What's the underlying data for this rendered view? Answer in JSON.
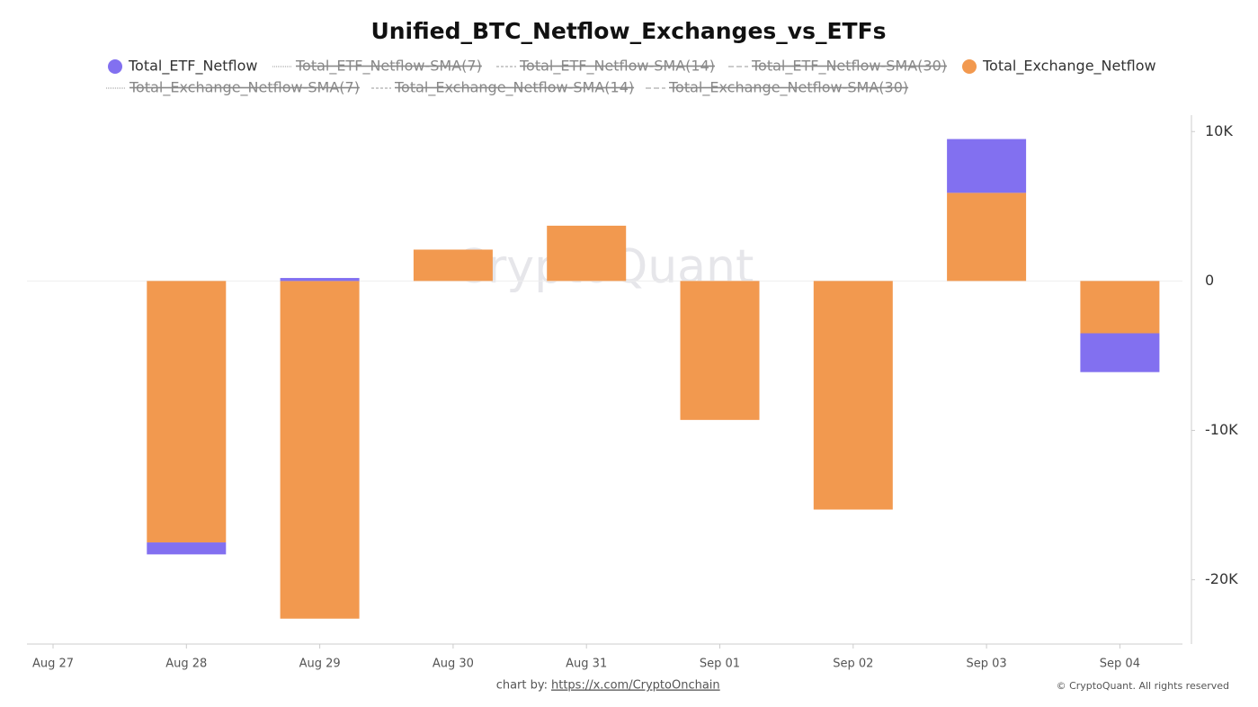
{
  "chart_data": {
    "type": "stacked_bar",
    "title": "Unified_BTC_Netflow_Exchanges_vs_ETFs",
    "categories": [
      "Aug 27",
      "Aug 28",
      "Aug 29",
      "Aug 30",
      "Aug 31",
      "Sep 01",
      "Sep 02",
      "Sep 03",
      "Sep 04"
    ],
    "series": [
      {
        "name": "Total_Exchange_Netflow",
        "color": "#f2994f",
        "values": [
          null,
          -17500,
          -22600,
          2100,
          3700,
          -9300,
          -15300,
          5900,
          -3500
        ]
      },
      {
        "name": "Total_ETF_Netflow",
        "color": "#8270f0",
        "values": [
          null,
          -800,
          200,
          null,
          null,
          null,
          null,
          3600,
          -2600
        ]
      }
    ],
    "inactive_series": [
      "Total_ETF_Netflow-SMA(7)",
      "Total_ETF_Netflow-SMA(14)",
      "Total_ETF_Netflow-SMA(30)",
      "Total_Exchange_Netflow-SMA(7)",
      "Total_Exchange_Netflow-SMA(14)",
      "Total_Exchange_Netflow-SMA(30)"
    ],
    "ylim": [
      -24300,
      11100
    ],
    "yticks": [
      {
        "value": -20000,
        "label": "-20K"
      },
      {
        "value": -10000,
        "label": "-10K"
      },
      0,
      {
        "value": 10000,
        "label": "10K"
      }
    ],
    "watermark": "CryptoQuant",
    "credit_prefix": "chart by:",
    "credit_link": "https://x.com/CryptoOnchain",
    "copyright": "© CryptoQuant. All rights reserved"
  }
}
